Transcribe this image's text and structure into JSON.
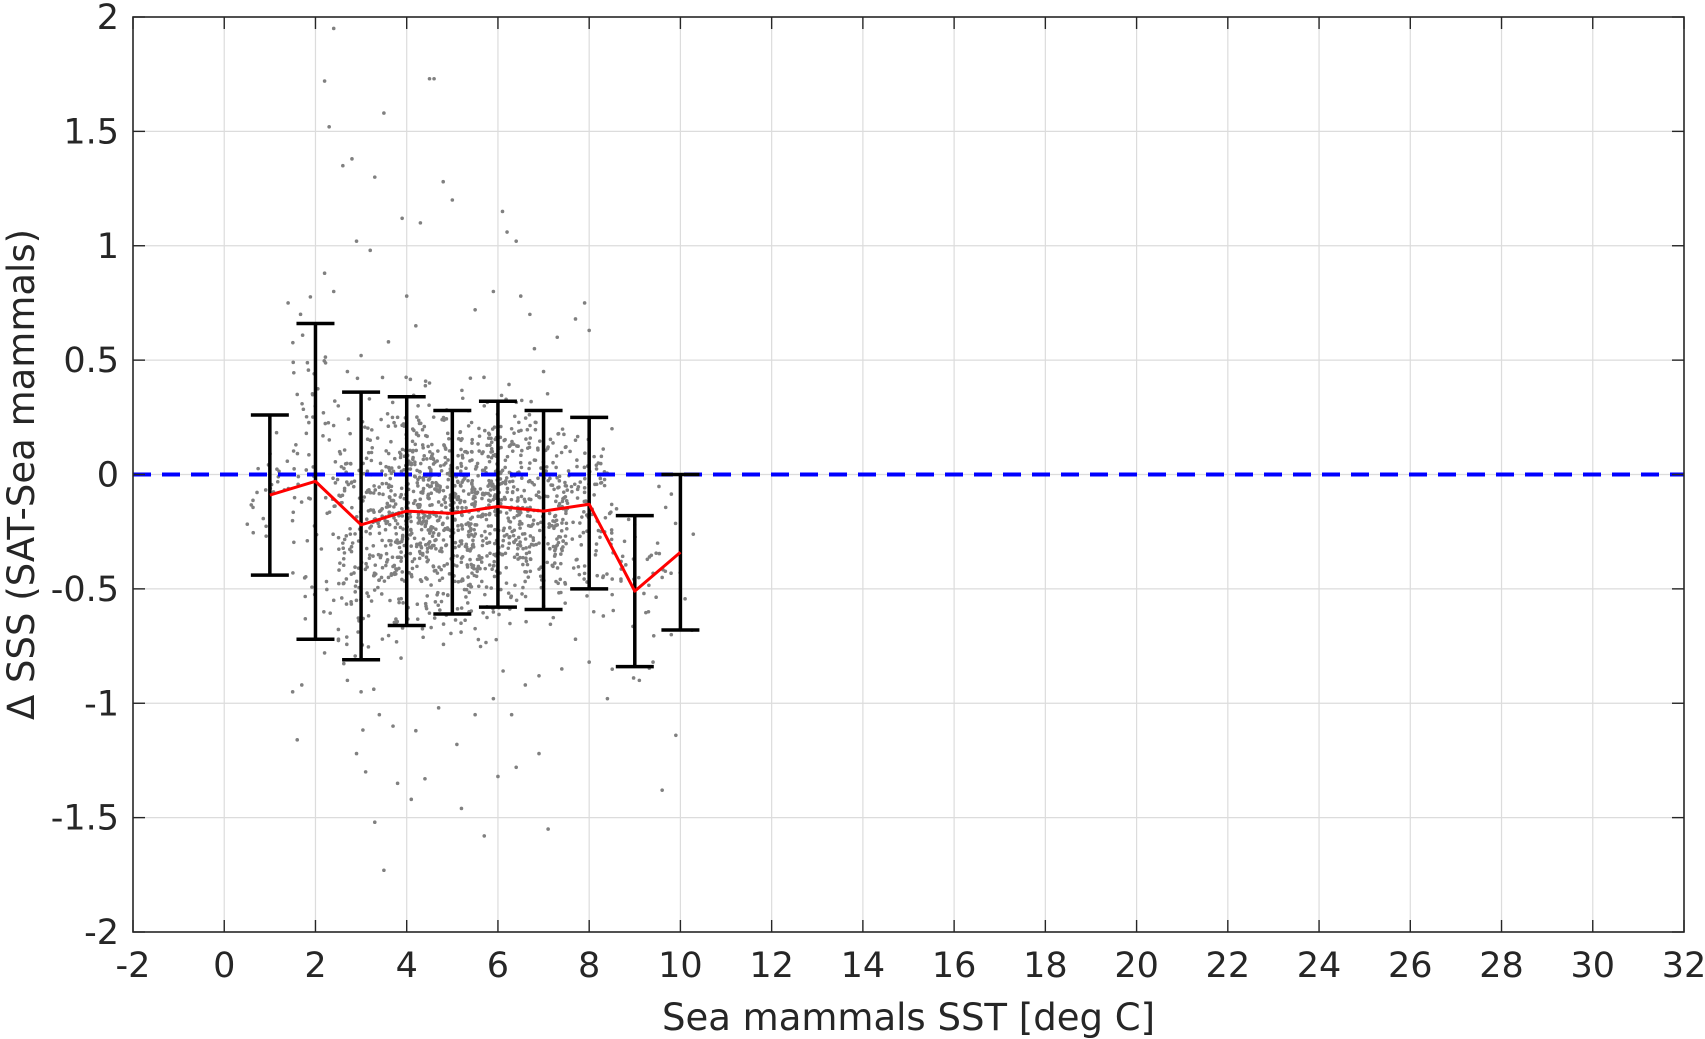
{
  "chart_data": {
    "type": "scatter",
    "xlabel": "Sea mammals SST [deg C]",
    "ylabel": "Δ SSS (SAT-Sea mammals)",
    "xlim": [
      -2,
      32
    ],
    "ylim": [
      -2,
      2
    ],
    "x_ticks": [
      -2,
      0,
      2,
      4,
      6,
      8,
      10,
      12,
      14,
      16,
      18,
      20,
      22,
      24,
      26,
      28,
      30,
      32
    ],
    "y_ticks": [
      2,
      1.5,
      1,
      0.5,
      0,
      -0.5,
      -1,
      -1.5,
      -2
    ],
    "x_tick_labels": [
      "-2",
      "0",
      "2",
      "4",
      "6",
      "8",
      "10",
      "12",
      "14",
      "16",
      "18",
      "20",
      "22",
      "24",
      "26",
      "28",
      "30",
      "32"
    ],
    "y_tick_labels": [
      "2",
      "1.5",
      "1",
      "0.5",
      "0",
      "-0.5",
      "-1",
      "-1.5",
      "-2"
    ],
    "grid": true,
    "colors": {
      "scatter": "#808080",
      "mean_line": "#ff0000",
      "errorbar": "#000000",
      "zero_line": "#0000ff",
      "grid": "#dcdcdc",
      "axes": "#262626"
    },
    "scatter_points": [
      [
        1.5,
        -0.95
      ],
      [
        1.6,
        -1.16
      ],
      [
        1.7,
        -0.92
      ],
      [
        1.4,
        0.75
      ],
      [
        1.6,
        0.35
      ],
      [
        1.8,
        0.18
      ],
      [
        2.2,
        1.72
      ],
      [
        2.4,
        1.95
      ],
      [
        2.3,
        1.52
      ],
      [
        2.6,
        1.35
      ],
      [
        2.8,
        1.38
      ],
      [
        3.5,
        1.58
      ],
      [
        4.5,
        1.73
      ],
      [
        4.6,
        1.73
      ],
      [
        2.9,
        1.02
      ],
      [
        3.2,
        0.98
      ],
      [
        3.9,
        1.12
      ],
      [
        4.3,
        1.1
      ],
      [
        4.8,
        1.28
      ],
      [
        5.0,
        1.2
      ],
      [
        6.1,
        1.15
      ],
      [
        6.2,
        1.06
      ],
      [
        6.4,
        1.02
      ],
      [
        3.3,
        1.3
      ],
      [
        2.2,
        0.88
      ],
      [
        2.4,
        0.8
      ],
      [
        2.9,
        -1.22
      ],
      [
        3.1,
        -1.3
      ],
      [
        3.3,
        -1.52
      ],
      [
        3.5,
        -1.73
      ],
      [
        3.8,
        -1.35
      ],
      [
        4.1,
        -1.42
      ],
      [
        4.4,
        -1.33
      ],
      [
        5.2,
        -1.46
      ],
      [
        5.7,
        -1.58
      ],
      [
        6.0,
        -1.32
      ],
      [
        6.4,
        -1.28
      ],
      [
        7.1,
        -1.55
      ],
      [
        6.9,
        -1.22
      ],
      [
        8.0,
        -0.82
      ],
      [
        8.4,
        -0.98
      ],
      [
        9.1,
        -0.9
      ],
      [
        9.4,
        -0.82
      ],
      [
        9.6,
        -1.38
      ],
      [
        9.9,
        -1.14
      ],
      [
        9.3,
        -0.6
      ],
      [
        9.5,
        -0.3
      ],
      [
        8.6,
        -0.15
      ],
      [
        8.2,
        0.05
      ],
      [
        8.5,
        0.2
      ],
      [
        7.9,
        0.75
      ],
      [
        8.0,
        0.63
      ],
      [
        7.7,
        0.68
      ],
      [
        7.0,
        0.45
      ],
      [
        6.8,
        0.55
      ],
      [
        7.3,
        0.6
      ],
      [
        6.7,
        0.7
      ],
      [
        6.5,
        0.78
      ],
      [
        5.5,
        0.72
      ],
      [
        5.9,
        0.8
      ],
      [
        4.0,
        0.78
      ],
      [
        4.2,
        0.65
      ],
      [
        3.6,
        0.58
      ],
      [
        3.0,
        0.52
      ],
      [
        2.7,
        0.45
      ],
      [
        2.5,
        0.3
      ],
      [
        2.6,
        -0.3
      ],
      [
        2.4,
        -0.55
      ],
      [
        2.2,
        -0.78
      ],
      [
        2.7,
        -0.9
      ],
      [
        3.0,
        -0.95
      ],
      [
        3.4,
        -1.05
      ],
      [
        3.7,
        -1.1
      ],
      [
        4.2,
        -1.12
      ],
      [
        4.7,
        -1.02
      ],
      [
        5.1,
        -1.18
      ],
      [
        5.5,
        -1.05
      ],
      [
        5.9,
        -0.98
      ],
      [
        6.3,
        -1.05
      ],
      [
        6.6,
        -0.92
      ],
      [
        6.9,
        -0.88
      ],
      [
        7.4,
        -0.85
      ],
      [
        7.7,
        -0.72
      ],
      [
        8.1,
        -0.6
      ],
      [
        8.3,
        -0.45
      ],
      [
        8.7,
        -0.38
      ],
      [
        9.0,
        -0.22
      ],
      [
        9.2,
        -0.52
      ],
      [
        9.6,
        -0.45
      ],
      [
        9.8,
        -0.7
      ],
      [
        3.2,
        0.15
      ],
      [
        3.4,
        -0.2
      ],
      [
        3.6,
        -0.45
      ],
      [
        3.8,
        0.25
      ],
      [
        4.1,
        0.05
      ],
      [
        4.3,
        -0.3
      ],
      [
        4.5,
        0.4
      ],
      [
        4.7,
        -0.12
      ],
      [
        4.9,
        0.18
      ],
      [
        5.1,
        -0.4
      ],
      [
        5.3,
        0.1
      ],
      [
        5.5,
        -0.22
      ],
      [
        5.7,
        0.3
      ],
      [
        5.9,
        -0.05
      ],
      [
        6.1,
        -0.35
      ],
      [
        6.3,
        0.2
      ],
      [
        6.5,
        -0.15
      ],
      [
        6.7,
        0.05
      ],
      [
        6.9,
        -0.3
      ],
      [
        7.1,
        0.12
      ],
      [
        7.3,
        -0.22
      ],
      [
        7.5,
        -0.05
      ],
      [
        7.7,
        0.15
      ],
      [
        7.9,
        -0.4
      ]
    ],
    "series": [
      {
        "type": "line",
        "x": [
          1,
          2,
          3,
          4,
          5,
          6,
          7,
          8,
          9,
          10
        ],
        "y": [
          -0.09,
          -0.03,
          -0.22,
          -0.16,
          -0.17,
          -0.14,
          -0.16,
          -0.13,
          -0.51,
          -0.34
        ]
      },
      {
        "type": "errorbar",
        "x": [
          1,
          2,
          3,
          4,
          5,
          6,
          7,
          8,
          9,
          10
        ],
        "upper": [
          0.26,
          0.66,
          0.36,
          0.34,
          0.28,
          0.32,
          0.28,
          0.25,
          -0.18,
          0.0
        ],
        "lower": [
          -0.44,
          -0.72,
          -0.81,
          -0.66,
          -0.61,
          -0.58,
          -0.59,
          -0.5,
          -0.84,
          -0.68
        ]
      },
      {
        "type": "reference-line",
        "y": 0,
        "style": "dashed"
      }
    ]
  }
}
